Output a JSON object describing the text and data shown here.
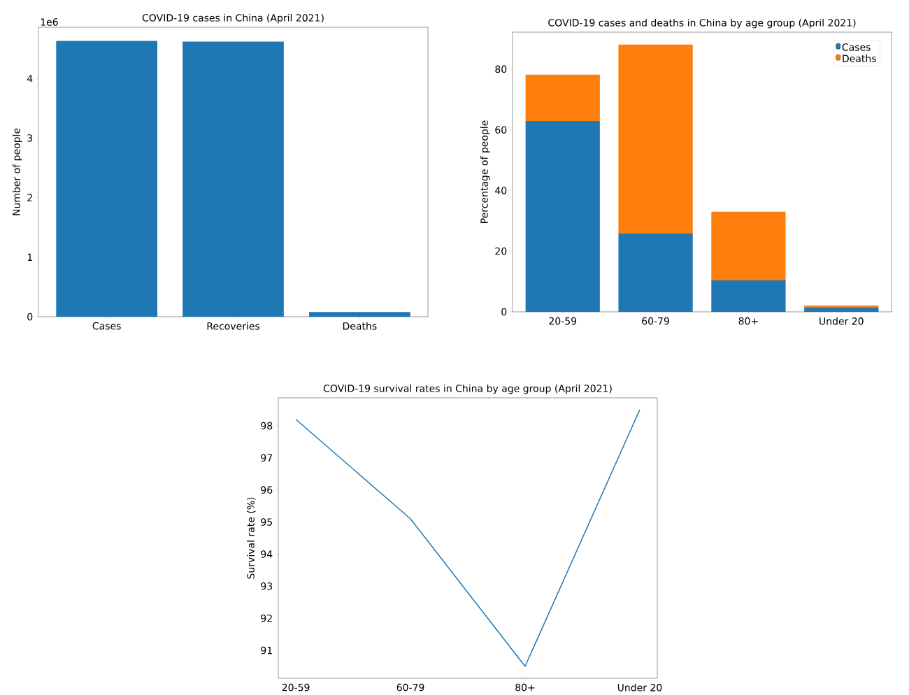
{
  "chart_data": [
    {
      "type": "bar",
      "title": "COVID-19 cases in China (April 2021)",
      "ylabel": "Number of people",
      "categories": [
        "Cases",
        "Recoveries",
        "Deaths"
      ],
      "values": [
        4.63,
        4.62,
        0.08
      ],
      "color": "#1f77b4",
      "ylim": [
        0,
        4.86
      ],
      "yticks": [
        0,
        1,
        2,
        3,
        4
      ],
      "annotations": [
        "1e6"
      ],
      "legend": false
    },
    {
      "type": "bar",
      "stacked": true,
      "title": "COVID-19 cases and deaths in China by age group (April 2021)",
      "ylabel": "Percentage of people",
      "categories": [
        "20-59",
        "60-79",
        "80+",
        "Under 20"
      ],
      "series": [
        {
          "name": "Cases",
          "color": "#1f77b4",
          "values": [
            62.9,
            25.8,
            10.4,
            1.4
          ]
        },
        {
          "name": "Deaths",
          "color": "#ff7f0e",
          "values": [
            15.3,
            62.3,
            22.6,
            0.7
          ]
        }
      ],
      "ylim": [
        0,
        92.2
      ],
      "yticks": [
        0,
        20,
        40,
        60,
        80
      ],
      "legend": "top right"
    },
    {
      "type": "line",
      "title": "COVID-19 survival rates in China by age group (April 2021)",
      "ylabel": "Survival rate (%)",
      "categories": [
        "20-59",
        "60-79",
        "80+",
        "Under 20"
      ],
      "values": [
        98.2,
        95.1,
        90.5,
        98.5
      ],
      "color": "#1f77b4",
      "ylim": [
        90.13,
        98.87
      ],
      "yticks": [
        91,
        92,
        93,
        94,
        95,
        96,
        97,
        98
      ],
      "legend": false
    }
  ]
}
